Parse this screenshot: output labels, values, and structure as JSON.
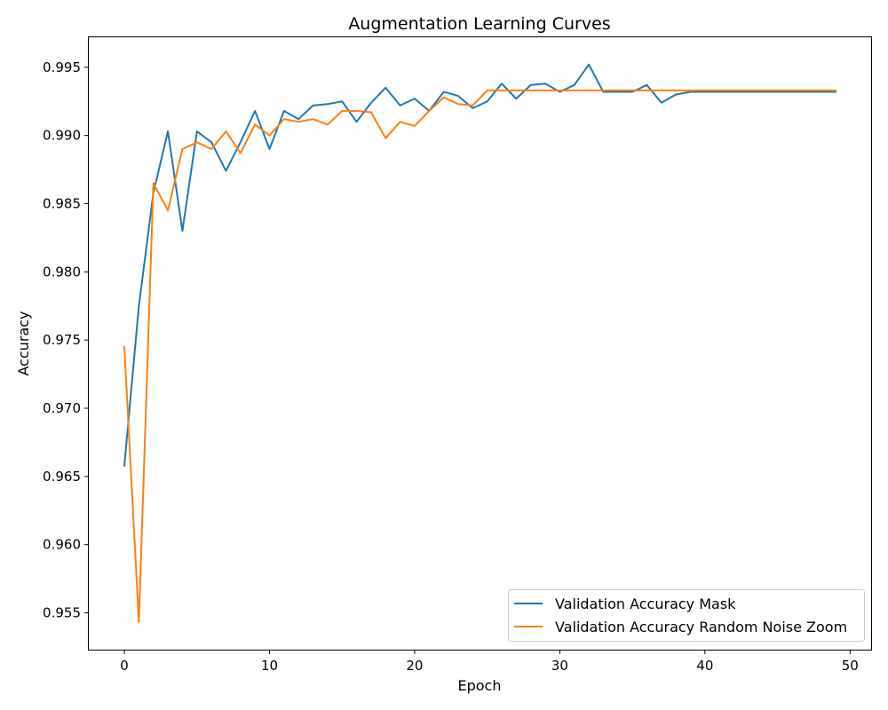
{
  "chart_data": {
    "type": "line",
    "title": "Augmentation Learning Curves",
    "xlabel": "Epoch",
    "ylabel": "Accuracy",
    "xlim": [
      -2.45,
      51.45
    ],
    "ylim": [
      0.9523,
      0.9972
    ],
    "xticks": [
      0,
      10,
      20,
      30,
      40,
      50
    ],
    "yticks": [
      0.955,
      0.96,
      0.965,
      0.97,
      0.975,
      0.98,
      0.985,
      0.99,
      0.995
    ],
    "ytick_labels": [
      "0.955",
      "0.960",
      "0.965",
      "0.970",
      "0.975",
      "0.980",
      "0.985",
      "0.990",
      "0.995"
    ],
    "grid": false,
    "legend_position": "lower-right",
    "x": [
      0,
      1,
      2,
      3,
      4,
      5,
      6,
      7,
      8,
      9,
      10,
      11,
      12,
      13,
      14,
      15,
      16,
      17,
      18,
      19,
      20,
      21,
      22,
      23,
      24,
      25,
      26,
      27,
      28,
      29,
      30,
      31,
      32,
      33,
      34,
      35,
      36,
      37,
      38,
      39,
      40,
      41,
      42,
      43,
      44,
      45,
      46,
      47,
      48,
      49
    ],
    "series": [
      {
        "name": "Validation Accuracy Mask",
        "color": "#1f77b4",
        "values": [
          0.9658,
          0.9775,
          0.9858,
          0.9903,
          0.983,
          0.9903,
          0.9895,
          0.9874,
          0.9895,
          0.9918,
          0.989,
          0.9918,
          0.9912,
          0.9922,
          0.9923,
          0.9925,
          0.991,
          0.9924,
          0.9935,
          0.9922,
          0.9927,
          0.9918,
          0.9932,
          0.9929,
          0.992,
          0.9925,
          0.9938,
          0.9927,
          0.9937,
          0.9938,
          0.9932,
          0.9937,
          0.9952,
          0.9932,
          0.9932,
          0.9932,
          0.9937,
          0.9924,
          0.993,
          0.9932,
          0.9932,
          0.9932,
          0.9932,
          0.9932,
          0.9932,
          0.9932,
          0.9932,
          0.9932,
          0.9932,
          0.9932
        ]
      },
      {
        "name": "Validation Accuracy Random Noise Zoom",
        "color": "#ff7f0e",
        "values": [
          0.9745,
          0.9543,
          0.9865,
          0.9845,
          0.989,
          0.9895,
          0.989,
          0.9903,
          0.9887,
          0.9908,
          0.99,
          0.9912,
          0.991,
          0.9912,
          0.9908,
          0.9918,
          0.9918,
          0.9917,
          0.9898,
          0.991,
          0.9907,
          0.9918,
          0.9928,
          0.9923,
          0.9922,
          0.9933,
          0.9933,
          0.9933,
          0.9933,
          0.9933,
          0.9933,
          0.9933,
          0.9933,
          0.9933,
          0.9933,
          0.9933,
          0.9933,
          0.9933,
          0.9933,
          0.9933,
          0.9933,
          0.9933,
          0.9933,
          0.9933,
          0.9933,
          0.9933,
          0.9933,
          0.9933,
          0.9933,
          0.9933
        ]
      }
    ]
  }
}
